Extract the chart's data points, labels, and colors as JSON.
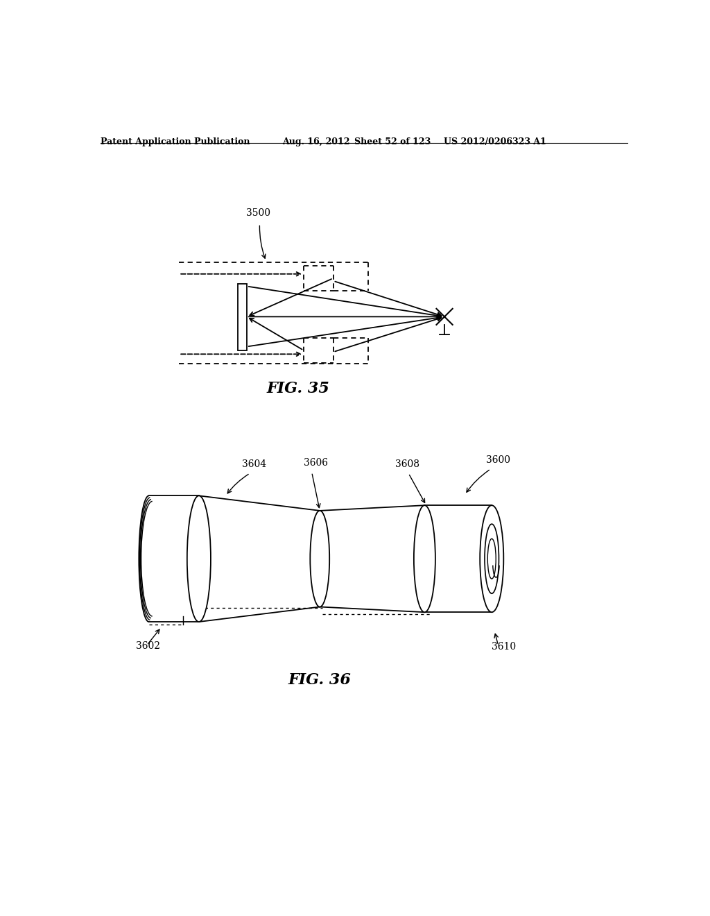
{
  "bg_color": "#ffffff",
  "header_text": "Patent Application Publication",
  "header_date": "Aug. 16, 2012",
  "header_sheet": "Sheet 52 of 123",
  "header_patent": "US 2012/0206323 A1",
  "fig35_label": "FIG. 35",
  "fig36_label": "FIG. 36",
  "label_3500": "3500",
  "label_3600": "3600",
  "label_3602": "3602",
  "label_3604": "3604",
  "label_3606": "3606",
  "label_3608": "3608",
  "label_3610": "3610",
  "header_fontsize": 9,
  "fig_label_fontsize": 16,
  "callout_fontsize": 9
}
